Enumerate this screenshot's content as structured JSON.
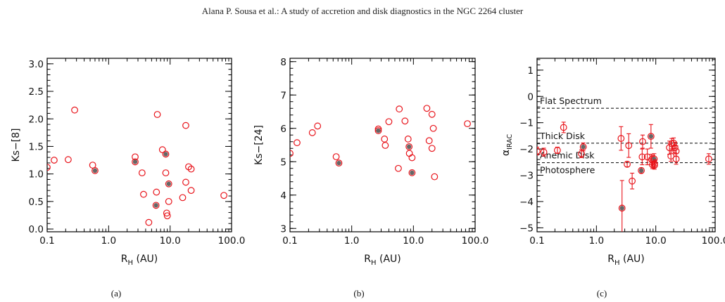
{
  "header": {
    "text": "Alana P. Sousa  et al.: A study of accretion and disk diagnostics in the NGC 2264 cluster"
  },
  "chart_data": [
    {
      "type": "scatter",
      "caption": "(a)",
      "xlabel_main": "R",
      "xlabel_sub": "H",
      "xlabel_unit": " (AU)",
      "ylabel": "Ks−[8]",
      "xscale": "log",
      "xlim": [
        0.1,
        100
      ],
      "ylim": [
        -0.05,
        3.1
      ],
      "xticks": [
        {
          "v": 0.1,
          "label": "0.1"
        },
        {
          "v": 1,
          "label": "1.0"
        },
        {
          "v": 10,
          "label": "10.0"
        },
        {
          "v": 100,
          "label": "100.0"
        }
      ],
      "yticks": [
        {
          "v": 0,
          "label": "0.0"
        },
        {
          "v": 0.5,
          "label": "0.5"
        },
        {
          "v": 1,
          "label": "1.0"
        },
        {
          "v": 1.5,
          "label": "1.5"
        },
        {
          "v": 2,
          "label": "2.0"
        },
        {
          "v": 2.5,
          "label": "2.5"
        },
        {
          "v": 3,
          "label": "3.0"
        }
      ],
      "points": [
        {
          "x": 0.1,
          "y": 1.12
        },
        {
          "x": 0.13,
          "y": 1.25
        },
        {
          "x": 0.22,
          "y": 1.26
        },
        {
          "x": 0.28,
          "y": 2.16
        },
        {
          "x": 0.55,
          "y": 1.16
        },
        {
          "x": 0.6,
          "y": 1.06,
          "filled": true
        },
        {
          "x": 2.7,
          "y": 1.31
        },
        {
          "x": 2.7,
          "y": 1.22,
          "filled": true
        },
        {
          "x": 3.5,
          "y": 1.02
        },
        {
          "x": 3.7,
          "y": 0.63
        },
        {
          "x": 4.5,
          "y": 0.12
        },
        {
          "x": 5.9,
          "y": 0.43,
          "filled": true
        },
        {
          "x": 6.0,
          "y": 0.67
        },
        {
          "x": 6.2,
          "y": 2.08
        },
        {
          "x": 7.5,
          "y": 1.44
        },
        {
          "x": 8.5,
          "y": 1.36,
          "filled": true
        },
        {
          "x": 8.5,
          "y": 1.02
        },
        {
          "x": 8.8,
          "y": 0.29
        },
        {
          "x": 9.0,
          "y": 0.24
        },
        {
          "x": 9.5,
          "y": 0.82,
          "filled": true
        },
        {
          "x": 9.5,
          "y": 0.5
        },
        {
          "x": 16.0,
          "y": 0.57
        },
        {
          "x": 18.0,
          "y": 1.88
        },
        {
          "x": 18.0,
          "y": 0.85
        },
        {
          "x": 20.0,
          "y": 1.13
        },
        {
          "x": 22.0,
          "y": 1.09
        },
        {
          "x": 22.0,
          "y": 0.7
        },
        {
          "x": 75.0,
          "y": 0.61
        }
      ]
    },
    {
      "type": "scatter",
      "caption": "(b)",
      "xlabel_main": "R",
      "xlabel_sub": "H",
      "xlabel_unit": " (AU)",
      "ylabel": "Ks−[24]",
      "xscale": "log",
      "xlim": [
        0.1,
        100
      ],
      "ylim": [
        2.9,
        8.1
      ],
      "xticks": [
        {
          "v": 0.1,
          "label": "0.1"
        },
        {
          "v": 1,
          "label": "1.0"
        },
        {
          "v": 10,
          "label": "10.0"
        },
        {
          "v": 100,
          "label": "100.0"
        }
      ],
      "yticks": [
        {
          "v": 3,
          "label": "3"
        },
        {
          "v": 4,
          "label": "4"
        },
        {
          "v": 5,
          "label": "5"
        },
        {
          "v": 6,
          "label": "6"
        },
        {
          "v": 7,
          "label": "7"
        },
        {
          "v": 8,
          "label": "8"
        }
      ],
      "points": [
        {
          "x": 0.1,
          "y": 5.25
        },
        {
          "x": 0.13,
          "y": 5.57
        },
        {
          "x": 0.23,
          "y": 5.87
        },
        {
          "x": 0.28,
          "y": 6.07
        },
        {
          "x": 0.56,
          "y": 5.15
        },
        {
          "x": 0.62,
          "y": 4.96,
          "filled": true
        },
        {
          "x": 2.7,
          "y": 5.98
        },
        {
          "x": 2.7,
          "y": 5.93,
          "filled": true
        },
        {
          "x": 3.4,
          "y": 5.68
        },
        {
          "x": 3.5,
          "y": 5.49
        },
        {
          "x": 4.0,
          "y": 6.2
        },
        {
          "x": 5.7,
          "y": 4.8
        },
        {
          "x": 5.9,
          "y": 6.58
        },
        {
          "x": 7.3,
          "y": 6.22
        },
        {
          "x": 8.2,
          "y": 5.68
        },
        {
          "x": 8.5,
          "y": 5.45,
          "filled": true
        },
        {
          "x": 8.6,
          "y": 5.25
        },
        {
          "x": 9.5,
          "y": 5.12
        },
        {
          "x": 9.5,
          "y": 4.67,
          "filled": true
        },
        {
          "x": 16.5,
          "y": 6.6
        },
        {
          "x": 18.0,
          "y": 5.63
        },
        {
          "x": 20.0,
          "y": 6.42
        },
        {
          "x": 20.0,
          "y": 5.4
        },
        {
          "x": 21.0,
          "y": 6.0
        },
        {
          "x": 22.0,
          "y": 4.55
        },
        {
          "x": 75.0,
          "y": 6.14
        }
      ]
    },
    {
      "type": "scatter",
      "caption": "(c)",
      "xlabel_main": "R",
      "xlabel_sub": "H",
      "xlabel_unit": " (AU)",
      "ylabel_main": "α",
      "ylabel_sub": "IRAC",
      "xscale": "log",
      "xlim": [
        0.1,
        100
      ],
      "ylim": [
        -5.15,
        1.45
      ],
      "xticks": [
        {
          "v": 0.1,
          "label": "0.1"
        },
        {
          "v": 1,
          "label": "1.0"
        },
        {
          "v": 10,
          "label": "10.0"
        },
        {
          "v": 100,
          "label": "100.0"
        }
      ],
      "yticks": [
        {
          "v": -5,
          "label": "−5"
        },
        {
          "v": -4,
          "label": "−4"
        },
        {
          "v": -3,
          "label": "−3"
        },
        {
          "v": -2,
          "label": "−2"
        },
        {
          "v": -1,
          "label": "−1"
        },
        {
          "v": 0,
          "label": "0"
        },
        {
          "v": 1,
          "label": "1"
        }
      ],
      "reference_lines": [
        {
          "y": -0.45,
          "label": "Flat Spectrum"
        },
        {
          "y": -1.78,
          "label": "Thick Disk"
        },
        {
          "y": -2.52,
          "label": "Anemic Disk"
        },
        {
          "label": "Photosphere"
        }
      ],
      "points": [
        {
          "x": 0.1,
          "y": -2.08,
          "err": 0.15
        },
        {
          "x": 0.13,
          "y": -2.12,
          "err": 0.15
        },
        {
          "x": 0.22,
          "y": -2.05,
          "err": 0.12
        },
        {
          "x": 0.28,
          "y": -1.18,
          "err": 0.2
        },
        {
          "x": 0.56,
          "y": -2.18,
          "err": 0.15
        },
        {
          "x": 0.6,
          "y": -1.92,
          "err": 0.15,
          "filled": true
        },
        {
          "x": 2.6,
          "y": -1.6,
          "err": 0.45
        },
        {
          "x": 2.7,
          "y": -4.25,
          "err": 1.05,
          "filled": true
        },
        {
          "x": 3.3,
          "y": -2.58,
          "err": 0.1
        },
        {
          "x": 3.5,
          "y": -1.87,
          "err": 0.45
        },
        {
          "x": 4.0,
          "y": -3.22,
          "err": 0.3
        },
        {
          "x": 5.7,
          "y": -2.82,
          "err": 0.1,
          "filled": true
        },
        {
          "x": 5.9,
          "y": -2.3,
          "err": 0.3
        },
        {
          "x": 6.0,
          "y": -1.72,
          "err": 0.25
        },
        {
          "x": 7.2,
          "y": -2.3,
          "err": 0.3
        },
        {
          "x": 8.3,
          "y": -1.52,
          "err": 0.45,
          "filled": true
        },
        {
          "x": 8.5,
          "y": -2.4,
          "err": 0.2
        },
        {
          "x": 8.8,
          "y": -2.6,
          "err": 0.15
        },
        {
          "x": 9.0,
          "y": -2.45,
          "err": 0.2
        },
        {
          "x": 9.4,
          "y": -2.38,
          "err": 0.2,
          "filled": true
        },
        {
          "x": 9.5,
          "y": -2.62,
          "err": 0.15
        },
        {
          "x": 9.5,
          "y": -2.56,
          "err": 0.15
        },
        {
          "x": 17.0,
          "y": -1.95,
          "err": 0.25
        },
        {
          "x": 18.0,
          "y": -2.27,
          "err": 0.2
        },
        {
          "x": 18.5,
          "y": -1.8,
          "err": 0.2
        },
        {
          "x": 20.0,
          "y": -1.78,
          "err": 0.2
        },
        {
          "x": 21.0,
          "y": -1.95,
          "err": 0.2
        },
        {
          "x": 22.0,
          "y": -2.08,
          "err": 0.2
        },
        {
          "x": 22.0,
          "y": -2.38,
          "err": 0.2
        },
        {
          "x": 78.0,
          "y": -2.38,
          "err": 0.2
        }
      ]
    }
  ]
}
